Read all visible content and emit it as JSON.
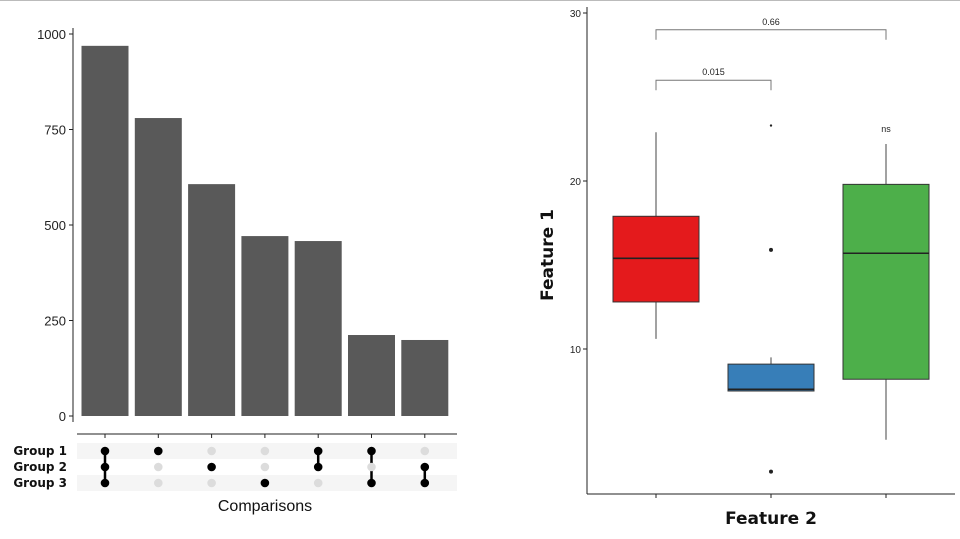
{
  "chart_data": [
    {
      "type": "bar",
      "subtype": "upset",
      "xlabel": "Comparisons",
      "ylabel": "",
      "ylim": [
        0,
        1000
      ],
      "yticks": [
        0,
        250,
        500,
        750,
        1000
      ],
      "sets": [
        "Group 1",
        "Group 2",
        "Group 3"
      ],
      "values": [
        969,
        780,
        607,
        471,
        458,
        212,
        199
      ],
      "intersections": [
        [
          "Group 1",
          "Group 2",
          "Group 3"
        ],
        [
          "Group 1"
        ],
        [
          "Group 2"
        ],
        [
          "Group 3"
        ],
        [
          "Group 1",
          "Group 2"
        ],
        [
          "Group 1",
          "Group 3"
        ],
        [
          "Group 2",
          "Group 3"
        ]
      ],
      "bar_color": "#595959",
      "grid": false
    },
    {
      "type": "box",
      "xlabel": "Feature 2",
      "ylabel": "Feature 1",
      "ylim": [
        1.4,
        30
      ],
      "yticks": [
        10,
        20,
        30
      ],
      "boxes": [
        {
          "color": "#E41A1C",
          "whisker_low": 10.6,
          "q1": 12.8,
          "median": 15.4,
          "q3": 17.9,
          "whisker_high": 22.9,
          "outliers": []
        },
        {
          "color": "#377EB8",
          "whisker_low": 7.5,
          "q1": 7.5,
          "median": 7.6,
          "q3": 9.1,
          "whisker_high": 9.5,
          "outliers": [
            23.3,
            15.9,
            2.7
          ]
        },
        {
          "color": "#4DAF4A",
          "whisker_low": 4.6,
          "q1": 8.2,
          "median": 15.7,
          "q3": 19.8,
          "whisker_high": 22.2,
          "outliers": []
        }
      ],
      "annotations": [
        {
          "label": "0.015",
          "from": 0,
          "to": 1,
          "y": 26
        },
        {
          "label": "0.66",
          "from": 0,
          "to": 2,
          "y": 29
        },
        {
          "label": "ns",
          "at": 2,
          "y": 23.1
        }
      ],
      "grid": false
    }
  ]
}
